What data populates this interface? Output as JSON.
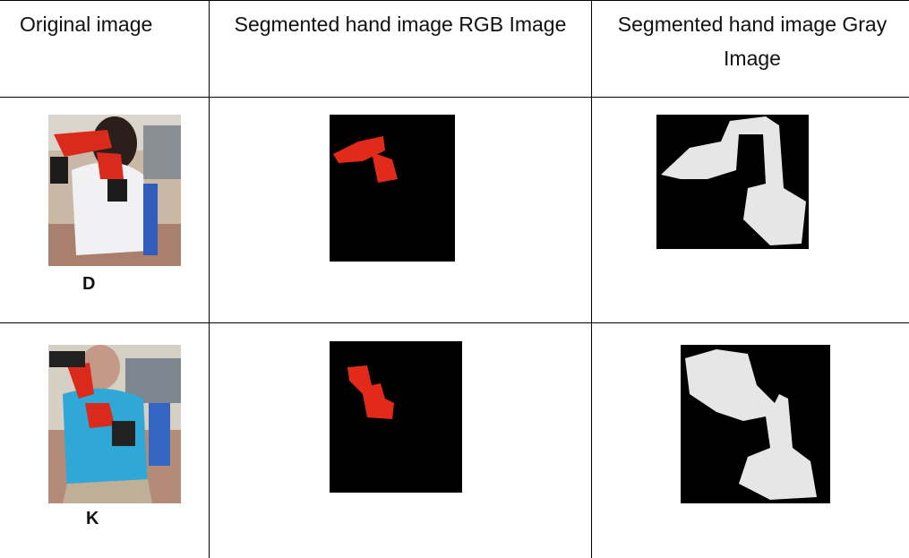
{
  "table": {
    "header": [
      "Original image",
      "Segmented hand image RGB Image",
      "Segmented hand image Gray Image"
    ],
    "rows": [
      [
        "D"
      ],
      [
        "K"
      ]
    ]
  }
}
